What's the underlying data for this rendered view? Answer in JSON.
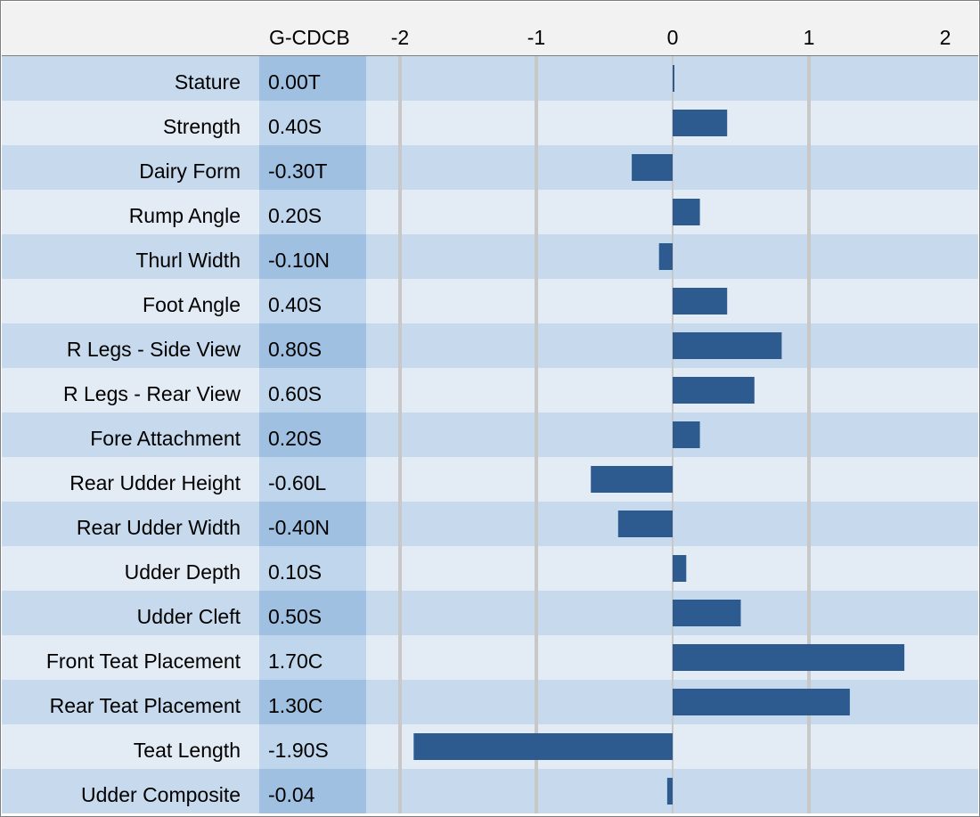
{
  "chart_data": {
    "type": "bar",
    "orientation": "horizontal",
    "column_header": "G-CDCB",
    "x_ticks": [
      "-2",
      "-1",
      "0",
      "1",
      "2"
    ],
    "xlim": [
      -2,
      2
    ],
    "grid": true,
    "categories": [
      "Stature",
      "Strength",
      "Dairy Form",
      "Rump Angle",
      "Thurl Width",
      "Foot Angle",
      "R Legs - Side View",
      "R Legs - Rear View",
      "Fore Attachment",
      "Rear Udder Height",
      "Rear Udder Width",
      "Udder Depth",
      "Udder Cleft",
      "Front Teat Placement",
      "Rear Teat Placement",
      "Teat Length",
      "Udder Composite"
    ],
    "value_labels": [
      "0.00T",
      "0.40S",
      "-0.30T",
      "0.20S",
      "-0.10N",
      "0.40S",
      "0.80S",
      "0.60S",
      "0.20S",
      "-0.60L",
      "-0.40N",
      "0.10S",
      "0.50S",
      "1.70C",
      "1.30C",
      "-1.90S",
      "-0.04"
    ],
    "values": [
      0.0,
      0.4,
      -0.3,
      0.2,
      -0.1,
      0.4,
      0.8,
      0.6,
      0.2,
      -0.6,
      -0.4,
      0.1,
      0.5,
      1.7,
      1.3,
      -1.9,
      -0.04
    ],
    "colors": {
      "bar": "#2e5b8f",
      "row_dark": "#c6d9ed",
      "row_light": "#e3ebf5",
      "value_col_dark": "#9fc0e0",
      "value_col_light": "#c0d6ec",
      "gridline": "#c8c8c8",
      "header_bg": "#f2f2f2"
    }
  }
}
